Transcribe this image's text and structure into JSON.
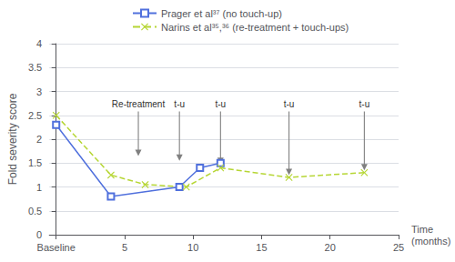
{
  "chart_data": {
    "type": "line",
    "ylabel": "Fold severity score",
    "xlabel": "Time\n(months)",
    "xlim": [
      -0.5,
      25
    ],
    "xticks": [
      {
        "value": 0,
        "label": "Baseline"
      },
      5,
      10,
      15,
      20,
      25
    ],
    "ylim": [
      0,
      4
    ],
    "yticks": [
      0,
      0.5,
      1,
      1.5,
      2,
      2.5,
      3,
      3.5,
      4
    ],
    "grid": true,
    "legend": "top",
    "series": [
      {
        "name": "Prager et al³⁷ (no touch-up)",
        "x": [
          0,
          4,
          9,
          10.5,
          12
        ],
        "values": [
          2.3,
          0.8,
          1.0,
          1.4,
          1.5
        ],
        "marker": "square",
        "line_style": "solid"
      },
      {
        "name": "Narins et al³⁵,³⁶ (re-treatment + touch-ups)",
        "x": [
          0,
          4,
          6.5,
          9.5,
          12,
          17,
          22.5
        ],
        "values": [
          2.5,
          1.25,
          1.05,
          1.0,
          1.4,
          1.2,
          1.3
        ],
        "marker": "x",
        "line_style": "dashed"
      }
    ],
    "annotations": [
      {
        "x": 6,
        "y_top": 2.58,
        "y_bottom": 1.65,
        "label": "Re-treatment",
        "color": "#808080"
      },
      {
        "x": 9,
        "y_top": 2.58,
        "y_bottom": 1.55,
        "label": "t-u",
        "color": "#808080"
      },
      {
        "x": 12,
        "y_top": 2.58,
        "y_bottom": 1.48,
        "label": "t-u",
        "color": "#808080"
      },
      {
        "x": 17,
        "y_top": 2.58,
        "y_bottom": 1.25,
        "label": "t-u",
        "color": "#808080"
      },
      {
        "x": 22.5,
        "y_top": 2.58,
        "y_bottom": 1.35,
        "label": "t-u",
        "color": "#808080"
      }
    ]
  }
}
